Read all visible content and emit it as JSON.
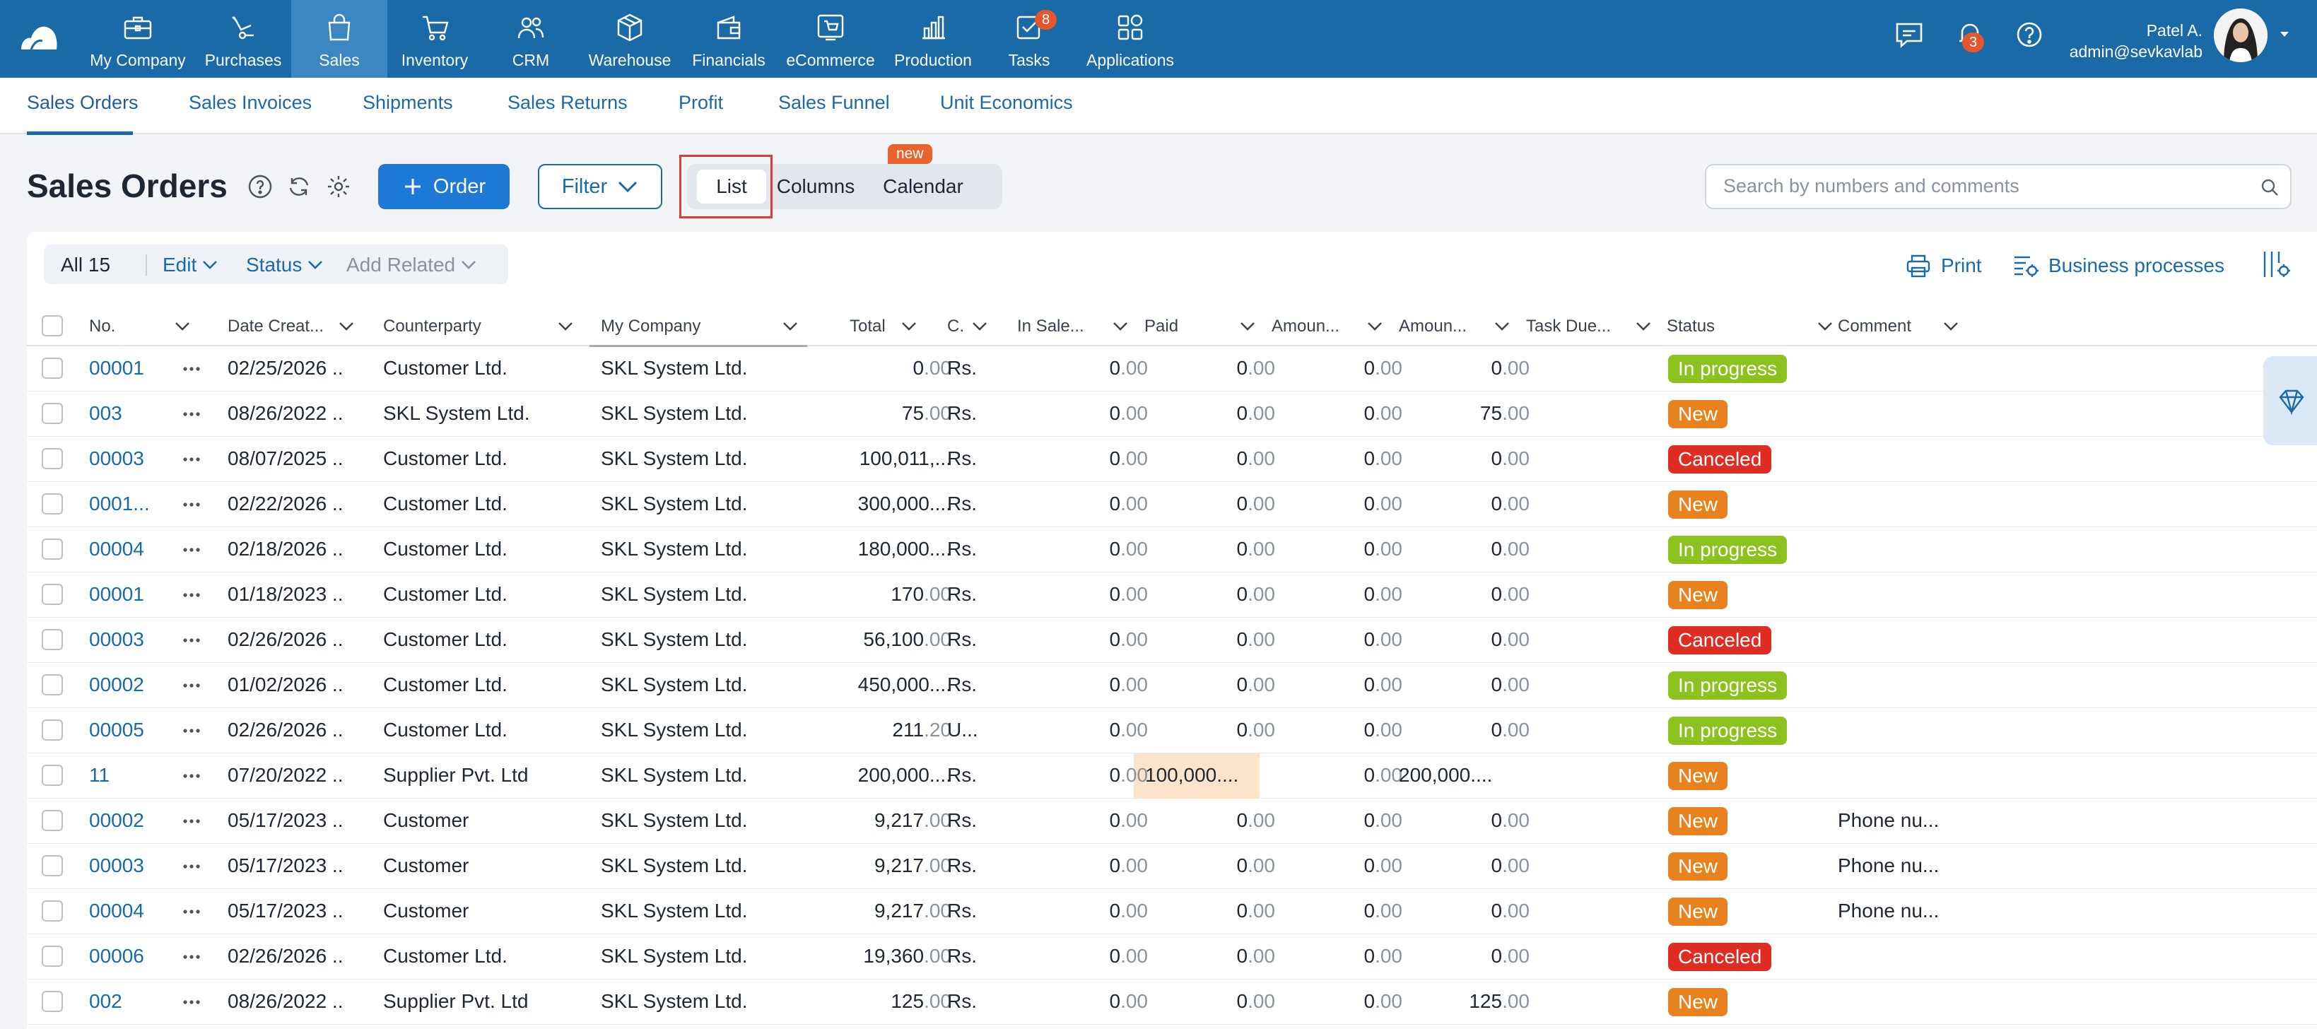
{
  "nav": {
    "items": [
      {
        "label": "My Company",
        "icon": "briefcase-icon"
      },
      {
        "label": "Purchases",
        "icon": "purchases-icon"
      },
      {
        "label": "Sales",
        "icon": "shopping-bag-icon"
      },
      {
        "label": "Inventory",
        "icon": "cart-icon"
      },
      {
        "label": "CRM",
        "icon": "people-icon"
      },
      {
        "label": "Warehouse",
        "icon": "box-icon"
      },
      {
        "label": "Financials",
        "icon": "wallet-icon"
      },
      {
        "label": "eCommerce",
        "icon": "ecommerce-icon"
      },
      {
        "label": "Production",
        "icon": "production-chart-icon"
      },
      {
        "label": "Tasks",
        "icon": "tasks-check-icon",
        "badge": "8"
      },
      {
        "label": "Applications",
        "icon": "apps-grid-icon"
      }
    ],
    "active": "Sales",
    "notifications_badge": "3",
    "user_name": "Patel A.",
    "user_email": "admin@sevkavlab",
    "accent": "#1a6aa8"
  },
  "subnav": {
    "items": [
      "Sales Orders",
      "Sales Invoices",
      "Shipments",
      "Sales Returns",
      "Profit",
      "Sales Funnel",
      "Unit Economics"
    ],
    "active": "Sales Orders"
  },
  "header": {
    "title": "Sales Orders",
    "order_button": "Order",
    "filter_button": "Filter",
    "views": [
      "List",
      "Columns",
      "Calendar"
    ],
    "active_view": "List",
    "new_tag": "new",
    "search_placeholder": "Search by numbers and comments"
  },
  "toolbar": {
    "all_label": "All 15",
    "edit_label": "Edit",
    "status_label": "Status",
    "add_related_label": "Add Related",
    "print_label": "Print",
    "business_processes_label": "Business processes"
  },
  "table": {
    "columns": [
      "No.",
      "Date Creat...",
      "Counterparty",
      "My Company",
      "Total",
      "C.",
      "In Sale...",
      "Paid",
      "Amoun...",
      "Amoun...",
      "Task Due...",
      "Status",
      "Comment"
    ],
    "status_colors": {
      "In progress": "#8cc21e",
      "New": "#e8821e",
      "Canceled": "#e02d22"
    },
    "rows": [
      {
        "no": "00001",
        "date": "02/25/2026",
        "counterparty": "Customer Ltd.",
        "company": "SKL System Ltd.",
        "total_int": "0",
        "total_dec": ".00",
        "currency": "Rs.",
        "in_sale": "0",
        "paid": "0",
        "amount1": "0",
        "amount2": "0",
        "amount2_dec": ".00",
        "status": "In progress",
        "comment": ""
      },
      {
        "no": "003",
        "date": "08/26/2022",
        "counterparty": "SKL System Ltd.",
        "company": "SKL System Ltd.",
        "total_int": "75",
        "total_dec": ".00",
        "currency": "Rs.",
        "in_sale": "0",
        "paid": "0",
        "amount1": "0",
        "amount2": "75",
        "amount2_dec": ".00",
        "status": "New",
        "comment": ""
      },
      {
        "no": "00003",
        "date": "08/07/2025",
        "counterparty": "Customer Ltd.",
        "company": "SKL System Ltd.",
        "total_int": "100,011,...",
        "total_dec": "",
        "currency": "Rs.",
        "in_sale": "0",
        "paid": "0",
        "amount1": "0",
        "amount2": "0",
        "amount2_dec": ".00",
        "status": "Canceled",
        "comment": ""
      },
      {
        "no": "0001...",
        "date": "02/22/2026",
        "counterparty": "Customer Ltd.",
        "company": "SKL System Ltd.",
        "total_int": "300,000....",
        "total_dec": "",
        "currency": "Rs.",
        "in_sale": "0",
        "paid": "0",
        "amount1": "0",
        "amount2": "0",
        "amount2_dec": ".00",
        "status": "New",
        "comment": ""
      },
      {
        "no": "00004",
        "date": "02/18/2026",
        "counterparty": "Customer Ltd.",
        "company": "SKL System Ltd.",
        "total_int": "180,000....",
        "total_dec": "",
        "currency": "Rs.",
        "in_sale": "0",
        "paid": "0",
        "amount1": "0",
        "amount2": "0",
        "amount2_dec": ".00",
        "status": "In progress",
        "comment": ""
      },
      {
        "no": "00001",
        "date": "01/18/2023",
        "counterparty": "Customer Ltd.",
        "company": "SKL System Ltd.",
        "total_int": "170",
        "total_dec": ".00",
        "currency": "Rs.",
        "in_sale": "0",
        "paid": "0",
        "amount1": "0",
        "amount2": "0",
        "amount2_dec": ".00",
        "status": "New",
        "comment": ""
      },
      {
        "no": "00003",
        "date": "02/26/2026",
        "counterparty": "Customer Ltd.",
        "company": "SKL System Ltd.",
        "total_int": "56,100",
        "total_dec": ".00",
        "currency": "Rs.",
        "in_sale": "0",
        "paid": "0",
        "amount1": "0",
        "amount2": "0",
        "amount2_dec": ".00",
        "status": "Canceled",
        "comment": ""
      },
      {
        "no": "00002",
        "date": "01/02/2026",
        "counterparty": "Customer Ltd.",
        "company": "SKL System Ltd.",
        "total_int": "450,000....",
        "total_dec": "",
        "currency": "Rs.",
        "in_sale": "0",
        "paid": "0",
        "amount1": "0",
        "amount2": "0",
        "amount2_dec": ".00",
        "status": "In progress",
        "comment": ""
      },
      {
        "no": "00005",
        "date": "02/26/2026",
        "counterparty": "Customer Ltd.",
        "company": "SKL System Ltd.",
        "total_int": "211",
        "total_dec": ".20",
        "currency": "U...",
        "in_sale": "0",
        "paid": "0",
        "amount1": "0",
        "amount2": "0",
        "amount2_dec": ".00",
        "status": "In progress",
        "comment": ""
      },
      {
        "no": "11",
        "date": "07/20/2022",
        "counterparty": "Supplier Pvt. Ltd",
        "company": "SKL System Ltd.",
        "total_int": "200,000....",
        "total_dec": "",
        "currency": "Rs.",
        "in_sale": "0",
        "paid": "100,000....",
        "amount1": "0",
        "amount2": "200,000....",
        "amount2_dec": "",
        "status": "New",
        "comment": ""
      },
      {
        "no": "00002",
        "date": "05/17/2023",
        "counterparty": "Customer",
        "company": "SKL System Ltd.",
        "total_int": "9,217",
        "total_dec": ".00",
        "currency": "Rs.",
        "in_sale": "0",
        "paid": "0",
        "amount1": "0",
        "amount2": "0",
        "amount2_dec": ".00",
        "status": "New",
        "comment": "Phone nu..."
      },
      {
        "no": "00003",
        "date": "05/17/2023",
        "counterparty": "Customer",
        "company": "SKL System Ltd.",
        "total_int": "9,217",
        "total_dec": ".00",
        "currency": "Rs.",
        "in_sale": "0",
        "paid": "0",
        "amount1": "0",
        "amount2": "0",
        "amount2_dec": ".00",
        "status": "New",
        "comment": "Phone nu..."
      },
      {
        "no": "00004",
        "date": "05/17/2023",
        "counterparty": "Customer",
        "company": "SKL System Ltd.",
        "total_int": "9,217",
        "total_dec": ".00",
        "currency": "Rs.",
        "in_sale": "0",
        "paid": "0",
        "amount1": "0",
        "amount2": "0",
        "amount2_dec": ".00",
        "status": "New",
        "comment": "Phone nu..."
      },
      {
        "no": "00006",
        "date": "02/26/2026",
        "counterparty": "Customer Ltd.",
        "company": "SKL System Ltd.",
        "total_int": "19,360",
        "total_dec": ".00",
        "currency": "Rs.",
        "in_sale": "0",
        "paid": "0",
        "amount1": "0",
        "amount2": "0",
        "amount2_dec": ".00",
        "status": "Canceled",
        "comment": ""
      },
      {
        "no": "002",
        "date": "08/26/2022",
        "counterparty": "Supplier Pvt. Ltd",
        "company": "SKL System Ltd.",
        "total_int": "125",
        "total_dec": ".00",
        "currency": "Rs.",
        "in_sale": "0",
        "paid": "0",
        "amount1": "0",
        "amount2": "125",
        "amount2_dec": ".00",
        "status": "New",
        "comment": ""
      }
    ]
  }
}
